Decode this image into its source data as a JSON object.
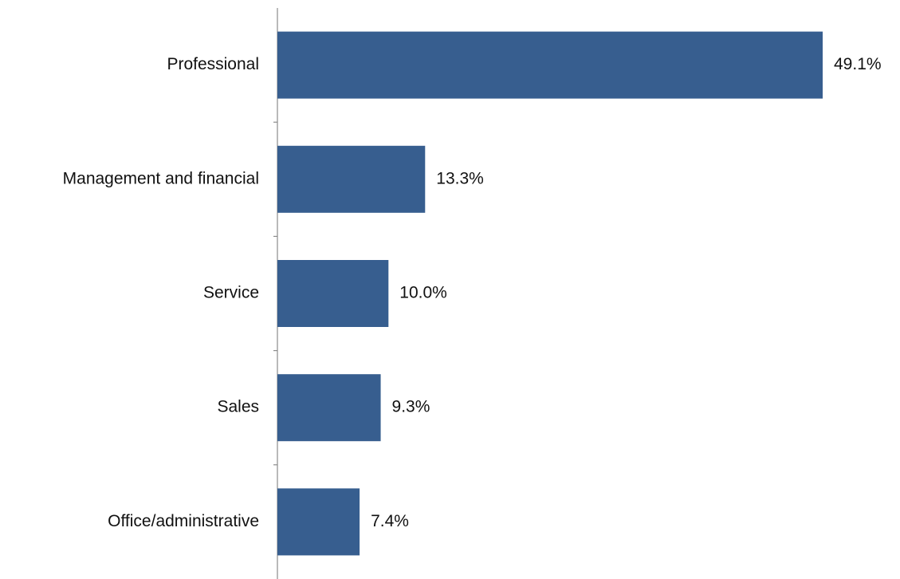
{
  "chart_data": {
    "type": "barh",
    "categories": [
      "Professional",
      "Management and financial",
      "Service",
      "Sales",
      "Office/administrative"
    ],
    "values": [
      49.1,
      13.3,
      10.0,
      9.3,
      7.4
    ],
    "value_labels": [
      "49.1%",
      "13.3%",
      "10.0%",
      "9.3%",
      "7.4%"
    ],
    "color": "#375e8f"
  }
}
